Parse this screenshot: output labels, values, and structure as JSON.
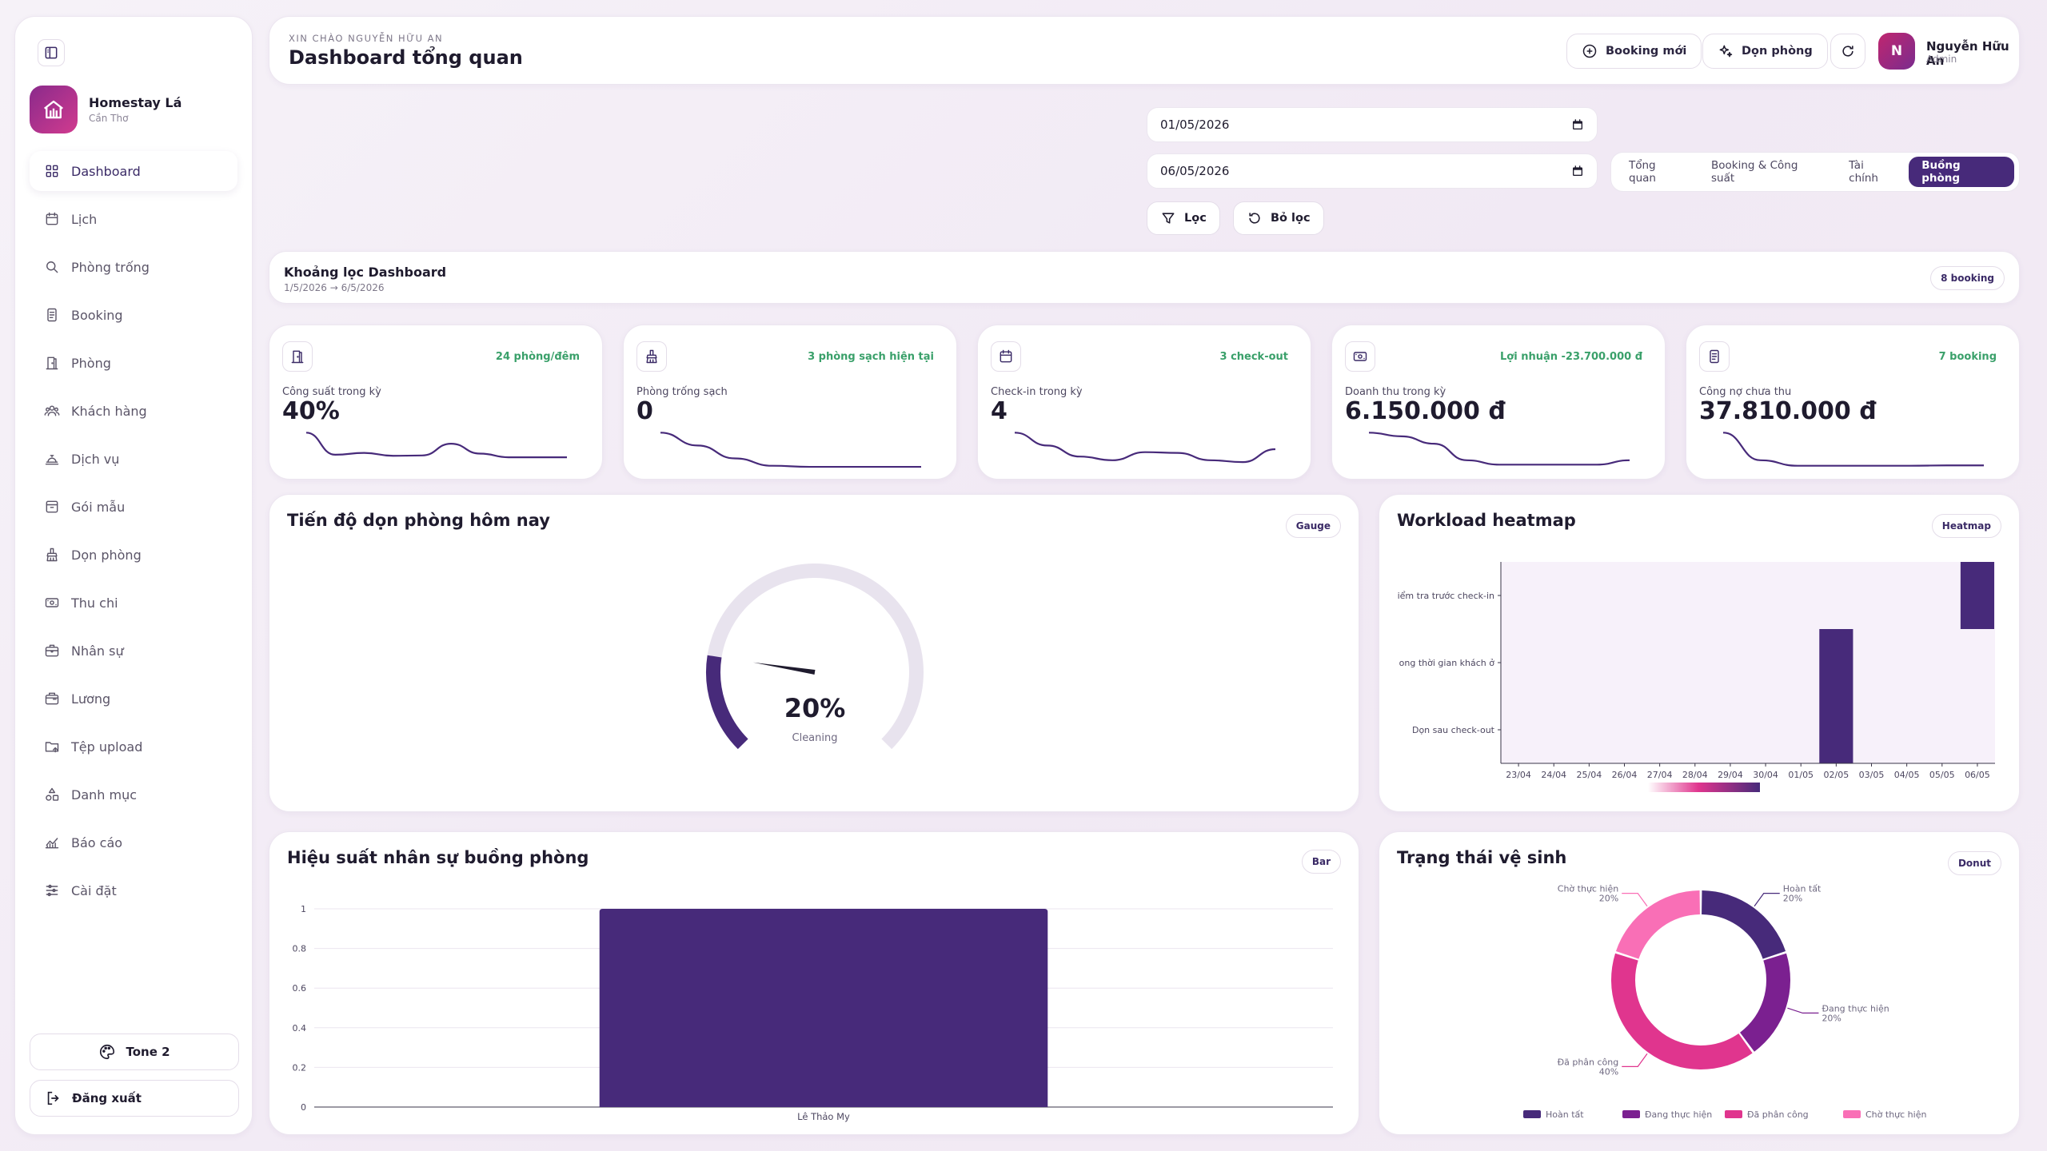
{
  "sidebar": {
    "brand": {
      "name": "Homestay Lá",
      "city": "Cần Thơ"
    },
    "nav": [
      {
        "label": "Dashboard",
        "icon": "grid-icon",
        "active": true
      },
      {
        "label": "Lịch",
        "icon": "calendar-icon"
      },
      {
        "label": "Phòng trống",
        "icon": "search-icon"
      },
      {
        "label": "Booking",
        "icon": "file-icon"
      },
      {
        "label": "Phòng",
        "icon": "door-icon"
      },
      {
        "label": "Khách hàng",
        "icon": "users-icon"
      },
      {
        "label": "Dịch vụ",
        "icon": "service-bell-icon"
      },
      {
        "label": "Gói mẫu",
        "icon": "package-icon"
      },
      {
        "label": "Dọn phòng",
        "icon": "broom-icon"
      },
      {
        "label": "Thu chi",
        "icon": "money-icon"
      },
      {
        "label": "Nhân sự",
        "icon": "briefcase-icon"
      },
      {
        "label": "Lương",
        "icon": "wallet-icon"
      },
      {
        "label": "Tệp upload",
        "icon": "folder-icon"
      },
      {
        "label": "Danh mục",
        "icon": "shapes-icon"
      },
      {
        "label": "Báo cáo",
        "icon": "chart-icon"
      },
      {
        "label": "Cài đặt",
        "icon": "sliders-icon"
      }
    ],
    "tone_label": "Tone 2",
    "logout_label": "Đăng xuất"
  },
  "header": {
    "greeting": "XIN CHÀO NGUYỄN HỮU AN",
    "title": "Dashboard tổng quan",
    "new_booking_label": "Booking mới",
    "cleaning_label": "Dọn phòng",
    "user": {
      "initial": "N",
      "name": "Nguyễn Hữu An",
      "role": "Admin"
    }
  },
  "filters": {
    "date_from": "01/05/2026",
    "date_to": "06/05/2026",
    "filter_label": "Lọc",
    "reset_label": "Bỏ lọc",
    "tabs": [
      {
        "label": "Tổng quan"
      },
      {
        "label": "Booking & Công suất"
      },
      {
        "label": "Tài chính"
      },
      {
        "label": "Buồng phòng",
        "active": true
      }
    ]
  },
  "range": {
    "title": "Khoảng lọc Dashboard",
    "value": "1/5/2026 → 6/5/2026",
    "badge": "8 booking"
  },
  "kpis": [
    {
      "label": "Công suất trong kỳ",
      "value": "40%",
      "badge": "24 phòng/đêm",
      "icon": "door-icon",
      "spark": [
        0.95,
        0.35,
        0.4,
        0.32,
        0.33,
        0.65,
        0.38,
        0.28,
        0.28,
        0.28
      ]
    },
    {
      "label": "Phòng trống sạch",
      "value": "0",
      "badge": "3 phòng sạch hiện tại",
      "icon": "broom-icon",
      "spark": [
        0.95,
        0.6,
        0.25,
        0.05,
        0.02,
        0.02,
        0.02,
        0.02
      ]
    },
    {
      "label": "Check-in trong kỳ",
      "value": "4",
      "badge": "3 check-out",
      "icon": "calendar-icon",
      "spark": [
        0.95,
        0.6,
        0.3,
        0.2,
        0.42,
        0.4,
        0.2,
        0.15,
        0.5
      ]
    },
    {
      "label": "Doanh thu trong kỳ",
      "value": "6.150.000 đ",
      "badge": "Lợi nhuận -23.700.000 đ",
      "icon": "money-icon",
      "spark": [
        0.95,
        0.85,
        0.65,
        0.2,
        0.08,
        0.08,
        0.08,
        0.08,
        0.2
      ]
    },
    {
      "label": "Công nợ chưa thu",
      "value": "37.810.000 đ",
      "badge": "7 booking",
      "icon": "file-icon",
      "spark": [
        0.95,
        0.2,
        0.05,
        0.05,
        0.05,
        0.05,
        0.06,
        0.06
      ]
    }
  ],
  "panels": {
    "gauge": {
      "title": "Tiến độ dọn phòng hôm nay",
      "badge": "Gauge",
      "center_label": "Cleaning"
    },
    "heatmap": {
      "title": "Workload heatmap",
      "badge": "Heatmap"
    },
    "bar": {
      "title": "Hiệu suất nhân sự buồng phòng",
      "badge": "Bar"
    },
    "donut": {
      "title": "Trạng thái vệ sinh",
      "badge": "Donut"
    }
  },
  "chart_data": [
    {
      "type": "gauge",
      "value": 20,
      "value_label": "20%",
      "max": 100,
      "label": "Cleaning",
      "color": "#472a7a"
    },
    {
      "type": "heatmap",
      "y_categories": [
        "Kiểm tra trước check-in",
        "Trong thời gian khách ở",
        "Dọn sau check-out"
      ],
      "y_tick_labels": [
        "iểm tra trước check-in",
        "ong thời gian khách ở",
        "Dọn sau check-out"
      ],
      "x_categories": [
        "23/04",
        "24/04",
        "25/04",
        "26/04",
        "27/04",
        "28/04",
        "29/04",
        "30/04",
        "01/05",
        "02/05",
        "03/05",
        "04/05",
        "05/05",
        "06/05"
      ],
      "cells": [
        {
          "x": "02/05",
          "y_span": [
            "Trong thời gian khách ở",
            "Dọn sau check-out"
          ]
        },
        {
          "x": "06/05",
          "y": "Kiểm tra trước check-in"
        }
      ],
      "colors": {
        "low": "#f7f1fa",
        "high": "#472a7a"
      }
    },
    {
      "type": "bar",
      "categories": [
        "Lê Thảo My"
      ],
      "values": [
        1
      ],
      "ylim": [
        0,
        1
      ],
      "yticks": [
        0,
        0.2,
        0.4,
        0.6,
        0.8,
        1
      ],
      "grid": true,
      "color": "#472a7a"
    },
    {
      "type": "pie",
      "donut": true,
      "slices": [
        {
          "label": "Hoàn tất",
          "value": 20,
          "value_label": "20%",
          "color": "#472a7a"
        },
        {
          "label": "Đang thực hiện",
          "value": 20,
          "value_label": "20%",
          "color": "#7b2090"
        },
        {
          "label": "Đã phân công",
          "value": 40,
          "value_label": "40%",
          "color": "#e0358e"
        },
        {
          "label": "Chờ thực hiện",
          "value": 20,
          "value_label": "20%",
          "color": "#f96fb6"
        }
      ],
      "legend": "bottom"
    }
  ]
}
